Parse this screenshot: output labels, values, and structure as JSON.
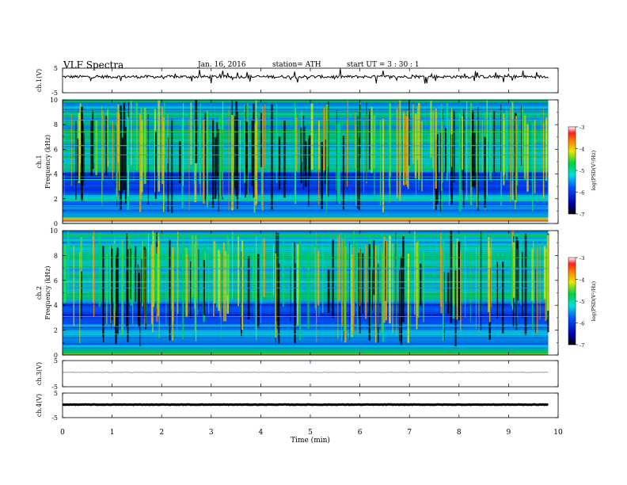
{
  "header": {
    "title": "VLF  Spectra",
    "date": "Jan. 16, 2016",
    "station": "station= ATH",
    "start": "start  UT  =   3  : 30 : 1"
  },
  "chart_data": [
    {
      "panel": "ch1-waveform",
      "type": "line",
      "ylabel": "ch.1(V)",
      "ylim": [
        -5,
        5
      ],
      "yticks": [
        "5",
        "-5"
      ],
      "series_color": "#000000",
      "baseline": 1.5
    },
    {
      "panel": "ch1-spectrogram",
      "type": "heatmap",
      "ylabel": "ch.1\nFrequency  (kHz)",
      "ylabel_lines": [
        "ch.1",
        "Frequency  (kHz)"
      ],
      "ylim": [
        0,
        10
      ],
      "yticks": [
        "0",
        "2",
        "4",
        "6",
        "8",
        "10"
      ],
      "colorbar": {
        "label": "log(PSD(V²/Hz)",
        "ticks": [
          "-3",
          "-4",
          "-5",
          "-6",
          "-7"
        ],
        "range": [
          -7,
          -3
        ]
      }
    },
    {
      "panel": "ch2-spectrogram",
      "type": "heatmap",
      "ylabel": "ch.2\nFrequency  (kHz)",
      "ylabel_lines": [
        "ch.2",
        "Frequency  (kHz)"
      ],
      "ylim": [
        0,
        10
      ],
      "yticks": [
        "0",
        "2",
        "4",
        "6",
        "8",
        "10"
      ],
      "colorbar": {
        "label": "log(PSD(V²/Hz)",
        "ticks": [
          "-3",
          "-4",
          "-5",
          "-6",
          "-7"
        ],
        "range": [
          -7,
          -3
        ]
      }
    },
    {
      "panel": "ch3-waveform",
      "type": "line",
      "ylabel": "ch.3(V)",
      "ylim": [
        -5,
        5
      ],
      "yticks": [
        "5",
        "-5"
      ],
      "series_color": "#999999",
      "baseline": 0.5
    },
    {
      "panel": "ch4-waveform",
      "type": "line",
      "ylabel": "ch.4(V)",
      "ylim": [
        -5,
        5
      ],
      "yticks": [
        "5",
        "-5"
      ],
      "series_color": "#000000",
      "baseline": 0.3
    }
  ],
  "xaxis": {
    "label": "Time  (min)",
    "xlim": [
      0,
      10
    ],
    "ticks": [
      "0",
      "1",
      "2",
      "3",
      "4",
      "5",
      "6",
      "7",
      "8",
      "9",
      "10"
    ],
    "data_end": 9.8
  }
}
